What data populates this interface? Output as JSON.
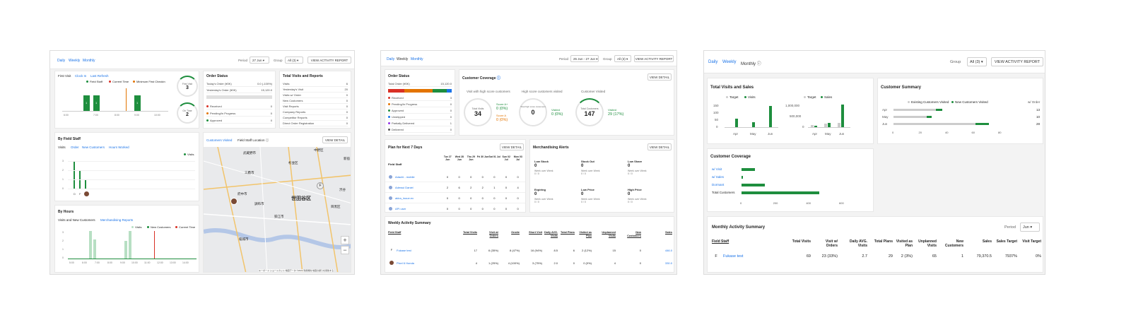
{
  "board1": {
    "tabs": [
      "Daily",
      "Weekly",
      "Monthly"
    ],
    "active_tab": 0,
    "period_label": "Period",
    "period_value": "27 Jun",
    "group_label": "Group",
    "group_value": "All (3)",
    "report_button": "VIEW ACTIVITY REPORT",
    "checkin": {
      "tabs": [
        "First Visit",
        "Clock In",
        "Last Refresh"
      ],
      "legend": [
        "Field Staff",
        "Current Time",
        "Minimum First Checkin"
      ],
      "x_ticks": [
        "6:00",
        "7:00",
        "8:00",
        "9:00",
        "10:00"
      ],
      "bar_labels": [
        "1",
        "1",
        "1"
      ],
      "ring1_label": "First Visit",
      "ring1_value": "3",
      "ring2_label": "On Time",
      "ring2_value": "2"
    },
    "order_status": {
      "title": "Order Status",
      "rows": [
        {
          "k": "Today's Order (¥0K)",
          "v": "0.0 (-100%)"
        },
        {
          "k": "Yesterday's Order (¥0K)",
          "v": "15,120.0"
        }
      ],
      "statuses": [
        {
          "k": "Received",
          "v": "0",
          "color": "#d93025"
        },
        {
          "k": "Pending/In Progress",
          "v": "0",
          "color": "#e37400"
        },
        {
          "k": "Approved",
          "v": "0",
          "color": "#1e8e3e"
        }
      ]
    },
    "visits_reports": {
      "title": "Total Visits and Reports",
      "rows": [
        {
          "k": "Visits",
          "v": "6"
        },
        {
          "k": "Yesterday's Visit",
          "v": "20"
        },
        {
          "k": "Visits w/ Order",
          "v": "0"
        },
        {
          "k": "New Customers",
          "v": "0"
        },
        {
          "k": "Visit Reports",
          "v": "0"
        },
        {
          "k": "Company Reports",
          "v": "0"
        },
        {
          "k": "Competitor Reports",
          "v": "0"
        },
        {
          "k": "Direct Order Registration",
          "v": "0"
        }
      ]
    },
    "by_staff": {
      "title": "By Field Staff",
      "tabs": [
        "Visits",
        "Order",
        "New Customers",
        "Hours Worked"
      ],
      "legend": "Visits",
      "y_ticks": [
        "3",
        "2",
        "1",
        "0"
      ],
      "x_labels": [
        "D",
        "F"
      ]
    },
    "by_hours": {
      "title": "By Hours",
      "tabs": [
        "Visits and New Customers",
        "Merchandising Reports"
      ],
      "legend": [
        "Visits",
        "New Customers",
        "Current Time"
      ],
      "y_ticks": [
        "3",
        "2",
        "1",
        "0"
      ],
      "x_ticks": [
        "5:00",
        "6:00",
        "7:00",
        "8:00",
        "9:00",
        "10:00",
        "11:00",
        "12:00",
        "13:00",
        "14:00"
      ]
    },
    "map": {
      "tabs": [
        "Customers Visited",
        "Field Staff Location"
      ],
      "button": "VIEW DETAIL",
      "places": [
        "中野区",
        "武蔵野市",
        "杉並区",
        "新宿",
        "三鷹市",
        "狛江市",
        "世田谷区",
        "渋谷",
        "府中市",
        "目黒区",
        "調布市",
        "稲城市"
      ],
      "footer": "キーボード ショートカット  地図データ ©2024  利用規約  地図の誤りを報告する"
    }
  },
  "board2": {
    "tabs": [
      "Daily",
      "Weekly",
      "Monthly"
    ],
    "active_tab": 1,
    "period_label": "Period",
    "period_value": "25 Jun - 27 Jun",
    "group_label": "Group",
    "group_value": "All (3)",
    "report_button": "VIEW ACTIVITY REPORT",
    "order_status": {
      "title": "Order Status",
      "total_label": "Total Order (¥0K)",
      "total_value": "15,120.0",
      "statuses": [
        {
          "k": "Received",
          "v": "3",
          "color": "#d93025"
        },
        {
          "k": "Pending/In Progress",
          "v": "0",
          "color": "#e37400"
        },
        {
          "k": "Approved",
          "v": "0",
          "color": "#1e8e3e"
        },
        {
          "k": "Unshipped",
          "v": "0",
          "color": "#1a73e8"
        },
        {
          "k": "Partially Delivered",
          "v": "1",
          "color": "#9334e6"
        },
        {
          "k": "Delivered",
          "v": "0",
          "color": "#555555"
        }
      ]
    },
    "coverage": {
      "title": "Customer Coverage",
      "button": "VIEW DETAIL",
      "col1": "Visit with high score customers",
      "col2": "High score customers visited",
      "col3": "Customer Visited",
      "ring1_label": "Total Visits",
      "ring1_value": "34",
      "scoreA_label": "Score A+",
      "scoreA_value": "0 (0%)",
      "scoreB_label": "Score A",
      "scoreB_value": "0 (0%)",
      "ring2_label": "Total high score customers",
      "ring2_value": "0",
      "visited2_label": "Visited",
      "visited2_value": "0 (0%)",
      "ring3_label": "Total Customers",
      "ring3_value": "147",
      "visited3_label": "Visited",
      "visited3_value": "29 (17%)"
    },
    "plan": {
      "title": "Plan for Next 7 Days",
      "button": "VIEW DETAIL",
      "staff_header": "Field Staff",
      "days": [
        "Tue 27 Jun",
        "Wed 28 Jun",
        "Thu 29 Jun",
        "Fri 30 Jun",
        "Sat 01 Jul",
        "Sun 02 Jul",
        "Mon 03 Jul"
      ],
      "rows": [
        {
          "name": "Adachi - mobile",
          "vals": [
            "0",
            "0",
            "0",
            "0",
            "0",
            "0",
            "0"
          ]
        },
        {
          "name": "Adewui Daniel",
          "vals": [
            "2",
            "6",
            "2",
            "2",
            "1",
            "0",
            "4"
          ]
        },
        {
          "name": "akira_inoue.ex",
          "vals": [
            "0",
            "0",
            "0",
            "0",
            "0",
            "0",
            "0"
          ]
        },
        {
          "name": "API user",
          "vals": [
            "0",
            "0",
            "0",
            "0",
            "0",
            "0",
            "0"
          ]
        }
      ]
    },
    "merch": {
      "title": "Merchandising Alerts",
      "button": "VIEW DETAIL",
      "cells": [
        {
          "name": "Low Stock",
          "val": "0",
          "sub": "Week over Week",
          "sub2": "0 / 0"
        },
        {
          "name": "Stock Out",
          "val": "0",
          "sub": "Week over Week",
          "sub2": "0 / 0"
        },
        {
          "name": "Low Share",
          "val": "0",
          "sub": "Week over Week",
          "sub2": "0 / 0"
        },
        {
          "name": "Expiring",
          "val": "0",
          "sub": "Week over Week",
          "sub2": "0 / 0"
        },
        {
          "name": "Low Price",
          "val": "0",
          "sub": "Week over Week",
          "sub2": "0 / 0"
        },
        {
          "name": "High Price",
          "val": "0",
          "sub": "Week over Week",
          "sub2": "0 / 0"
        }
      ]
    },
    "weekly": {
      "title": "Weekly Activity Summary",
      "headers": [
        "Field Staff",
        "Total Visits",
        "Visit w/ Orders",
        "Onsite",
        "Short Visit",
        "Daily AVG. Visits",
        "Total Plans",
        "Visited as Plan",
        "Unplanned Visits",
        "New Customers",
        "Sales"
      ],
      "rows": [
        {
          "initial": "F",
          "name": "Fukase test",
          "vals": [
            "17",
            "6 (35%)",
            "8 (47%)",
            "16 (94%)",
            "8.5",
            "6",
            "2 (12%)",
            "15",
            "0",
            "446.0"
          ]
        },
        {
          "initial": "",
          "name": "Pixel 6 Honda",
          "vals": [
            "4",
            "1 (25%)",
            "4 (100%)",
            "3 (75%)",
            "2.0",
            "0",
            "0 (0%)",
            "4",
            "0",
            "330.0"
          ]
        }
      ]
    }
  },
  "board3": {
    "tabs": [
      "Daily",
      "Weekly",
      "Monthly"
    ],
    "active_tab": 2,
    "group_label": "Group",
    "group_value": "All (3)",
    "report_button": "VIEW ACTIVITY REPORT",
    "visits_sales": {
      "title": "Total Visits and Sales",
      "legend1": [
        "Target",
        "Visits"
      ],
      "legend2": [
        "Target",
        "Sales"
      ],
      "y1_ticks": [
        "150",
        "100",
        "50",
        "0"
      ],
      "y2_ticks": [
        "1,000,000",
        "500,000",
        "0"
      ],
      "months": [
        "Apr",
        "May",
        "Jun"
      ]
    },
    "customer_summary": {
      "title": "Customer Summary",
      "legend": [
        "Existing Customers Visited",
        "New Customers Visited"
      ],
      "order_label": "w/ Order",
      "rows": [
        {
          "month": "Apr",
          "order": "13"
        },
        {
          "month": "May",
          "order": "10"
        },
        {
          "month": "Jun",
          "order": "28"
        }
      ],
      "x_ticks": [
        "0",
        "20",
        "40",
        "60",
        "80"
      ]
    },
    "coverage": {
      "title": "Customer Coverage",
      "rows": [
        "w/ Visit",
        "w/ Sales",
        "Dormant",
        "Total Customers"
      ],
      "x_ticks": [
        "0",
        "200",
        "400",
        "600"
      ]
    },
    "monthly": {
      "title": "Monthly Activity Summary",
      "period_label": "Period",
      "period_value": "Jun",
      "headers": [
        "Field Staff",
        "Total Visits",
        "Visit w/ Orders",
        "Daily AVG. Visits",
        "Total Plans",
        "Visited as Plan",
        "Unplanned Visits",
        "New Customers",
        "Sales",
        "Sales Target",
        "Visit Target"
      ],
      "rows": [
        {
          "initial": "F",
          "name": "Fukase test",
          "vals": [
            "69",
            "23 (33%)",
            "2.7",
            "29",
            "2 (3%)",
            "65",
            "1",
            "79,370.5",
            "7937%",
            "0%"
          ]
        }
      ]
    }
  },
  "chart_data": [
    {
      "type": "bar",
      "title": "By Field Staff",
      "categories": [
        "D",
        "F",
        ""
      ],
      "series": [
        {
          "name": "Visits",
          "values": [
            3,
            2,
            1
          ]
        }
      ],
      "ylim": [
        0,
        3
      ]
    },
    {
      "type": "bar",
      "title": "Total Visits and Sales",
      "categories": [
        "Apr",
        "May",
        "Jun"
      ],
      "series": [
        {
          "name": "Target",
          "values": [
            0,
            0,
            0
          ]
        },
        {
          "name": "Visits",
          "values": [
            55,
            35,
            140
          ]
        }
      ],
      "ylim": [
        0,
        150
      ]
    },
    {
      "type": "bar",
      "title": "Total Visits and Sales",
      "categories": [
        "Apr",
        "May",
        "Jun"
      ],
      "series": [
        {
          "name": "Target",
          "values": [
            100000,
            150000,
            200000
          ]
        },
        {
          "name": "Sales",
          "values": [
            60000,
            200000,
            1000000
          ]
        }
      ],
      "ylim": [
        0,
        1000000
      ]
    },
    {
      "type": "bar",
      "title": "Customer Summary",
      "categories": [
        "Apr",
        "May",
        "Jun"
      ],
      "series": [
        {
          "name": "Existing Customers Visited",
          "values": [
            32,
            25,
            62
          ]
        },
        {
          "name": "New Customers Visited",
          "values": [
            5,
            4,
            10
          ]
        }
      ],
      "xlim": [
        0,
        80
      ]
    },
    {
      "type": "bar",
      "title": "Customer Coverage",
      "categories": [
        "w/ Visit",
        "w/ Sales",
        "Dormant",
        "Total Customers"
      ],
      "series": [
        {
          "values": [
            80,
            10,
            140,
            470
          ]
        }
      ],
      "xlim": [
        0,
        600
      ]
    }
  ]
}
